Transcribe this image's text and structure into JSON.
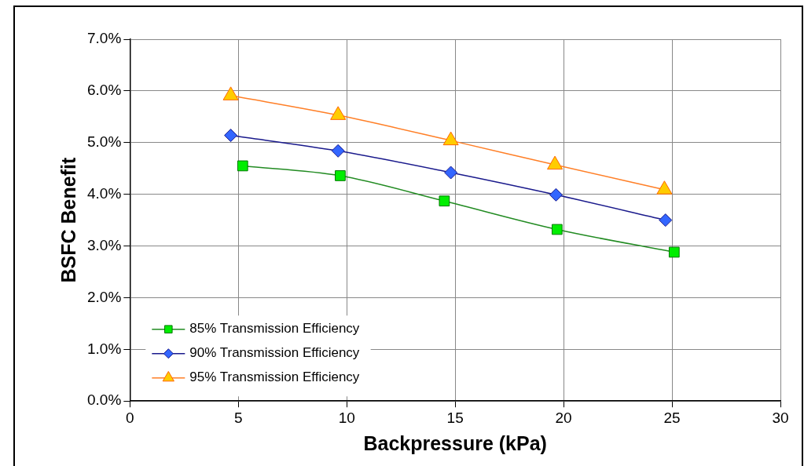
{
  "chart_data": {
    "type": "line",
    "xlabel": "Backpressure (kPa)",
    "ylabel": "BSFC Benefit",
    "xlim": [
      0,
      30
    ],
    "xticks": [
      0,
      5,
      10,
      15,
      20,
      25,
      30
    ],
    "ylim": [
      0,
      7
    ],
    "yticks": [
      {
        "value": 0,
        "label": "0.0%"
      },
      {
        "value": 1,
        "label": "1.0%"
      },
      {
        "value": 2,
        "label": "2.0%"
      },
      {
        "value": 3,
        "label": "3.0%"
      },
      {
        "value": 4,
        "label": "4.0%"
      },
      {
        "value": 5,
        "label": "5.0%"
      },
      {
        "value": 6,
        "label": "6.0%"
      },
      {
        "value": 7,
        "label": "7.0%"
      }
    ],
    "grid": true,
    "legend": "bottom left",
    "line_style": "solid",
    "series": [
      {
        "name": "85% Transmission Efficiency",
        "color": "#228b22",
        "marker": "square",
        "x": [
          5.2,
          9.7,
          14.5,
          19.7,
          25.1
        ],
        "values": [
          4.55,
          4.36,
          3.87,
          3.32,
          2.88
        ]
      },
      {
        "name": "90% Transmission Efficiency",
        "color": "#1a1a8c",
        "marker": "diamond",
        "x": [
          4.65,
          9.6,
          14.8,
          19.65,
          24.7
        ],
        "values": [
          5.14,
          4.84,
          4.42,
          3.99,
          3.5
        ]
      },
      {
        "name": "95% Transmission Efficiency",
        "color": "#ff7f27",
        "marker": "triangle",
        "x": [
          4.65,
          9.6,
          14.8,
          19.6,
          24.65
        ],
        "values": [
          5.91,
          5.53,
          5.04,
          4.57,
          4.09
        ]
      }
    ]
  }
}
